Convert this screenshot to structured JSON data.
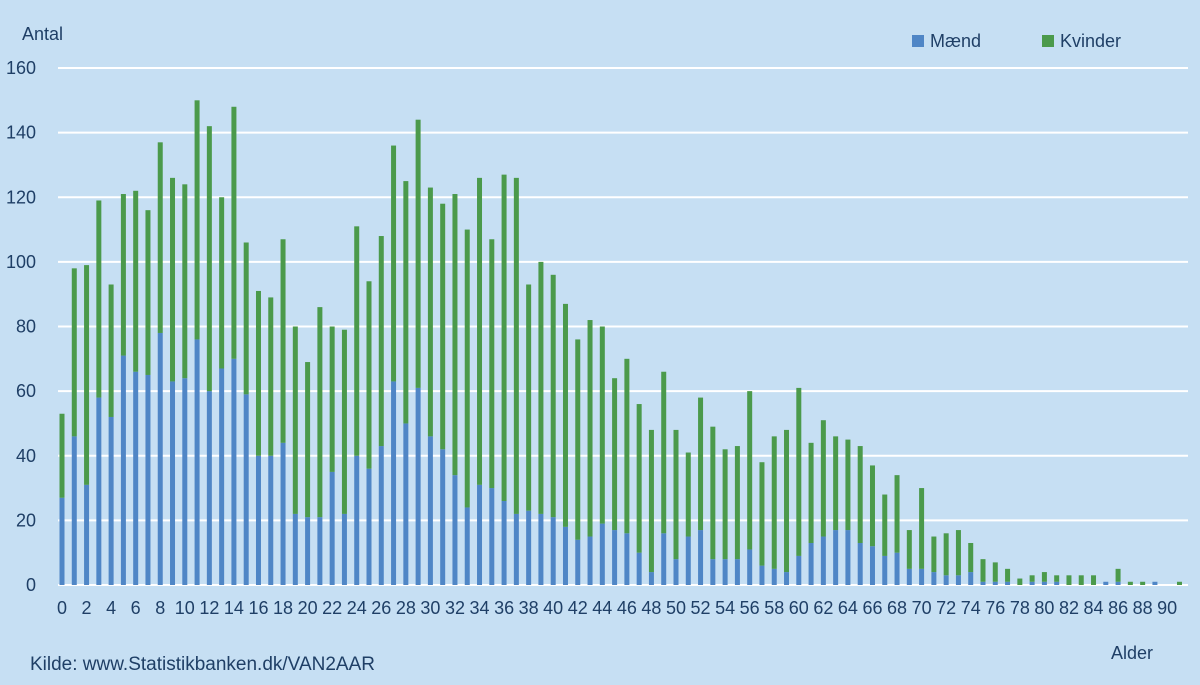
{
  "chart_data": {
    "type": "bar",
    "stacked": true,
    "ylabel": "Antal",
    "xlabel": "Alder",
    "ylim": [
      0,
      160
    ],
    "yticks": [
      0,
      20,
      40,
      60,
      80,
      100,
      120,
      140,
      160
    ],
    "grid": true,
    "legend_position": "top-right",
    "source": "Kilde: www.Statistikbanken.dk/VAN2AAR",
    "categories": [
      "0",
      "1",
      "2",
      "3",
      "4",
      "5",
      "6",
      "7",
      "8",
      "9",
      "10",
      "11",
      "12",
      "13",
      "14",
      "15",
      "16",
      "17",
      "18",
      "19",
      "20",
      "21",
      "22",
      "23",
      "24",
      "25",
      "26",
      "27",
      "28",
      "29",
      "30",
      "31",
      "32",
      "33",
      "34",
      "35",
      "36",
      "37",
      "38",
      "39",
      "40",
      "41",
      "42",
      "43",
      "44",
      "45",
      "46",
      "47",
      "48",
      "49",
      "50",
      "51",
      "52",
      "53",
      "54",
      "55",
      "56",
      "57",
      "58",
      "59",
      "60",
      "61",
      "62",
      "63",
      "64",
      "65",
      "66",
      "67",
      "68",
      "69",
      "70",
      "71",
      "72",
      "73",
      "74",
      "75",
      "76",
      "77",
      "78",
      "79",
      "80",
      "81",
      "82",
      "83",
      "84",
      "85",
      "86",
      "87",
      "88",
      "89",
      "90",
      "91"
    ],
    "xtick_labels": [
      "0",
      "2",
      "4",
      "6",
      "8",
      "10",
      "12",
      "14",
      "16",
      "18",
      "20",
      "22",
      "24",
      "26",
      "28",
      "30",
      "32",
      "34",
      "36",
      "38",
      "40",
      "42",
      "44",
      "46",
      "48",
      "50",
      "52",
      "54",
      "56",
      "58",
      "60",
      "62",
      "64",
      "66",
      "68",
      "70",
      "72",
      "74",
      "76",
      "78",
      "80",
      "82",
      "84",
      "86",
      "88",
      "90"
    ],
    "series": [
      {
        "name": "Mænd",
        "color": "#4f86c6",
        "values": [
          27,
          46,
          31,
          58,
          52,
          71,
          66,
          65,
          78,
          63,
          64,
          76,
          60,
          67,
          70,
          59,
          40,
          40,
          44,
          22,
          21,
          21,
          35,
          22,
          40,
          36,
          43,
          63,
          50,
          61,
          46,
          42,
          34,
          24,
          31,
          30,
          26,
          22,
          23,
          22,
          21,
          18,
          14,
          15,
          19,
          17,
          16,
          10,
          4,
          16,
          8,
          15,
          17,
          8,
          8,
          8,
          11,
          6,
          5,
          4,
          9,
          13,
          15,
          17,
          17,
          13,
          12,
          9,
          10,
          5,
          5,
          4,
          3,
          3,
          4,
          1,
          1,
          1,
          0,
          1,
          1,
          1,
          0,
          0,
          0,
          1,
          1,
          0,
          0,
          1,
          0,
          0
        ]
      },
      {
        "name": "Kvinder",
        "color": "#4b9a4b",
        "values": [
          26,
          52,
          68,
          61,
          41,
          50,
          56,
          51,
          59,
          63,
          60,
          74,
          82,
          53,
          78,
          47,
          51,
          49,
          63,
          58,
          48,
          65,
          45,
          57,
          71,
          58,
          65,
          73,
          75,
          83,
          77,
          76,
          87,
          86,
          95,
          77,
          101,
          104,
          70,
          78,
          75,
          69,
          62,
          67,
          61,
          47,
          54,
          46,
          44,
          50,
          40,
          26,
          41,
          41,
          34,
          35,
          49,
          32,
          41,
          44,
          52,
          31,
          36,
          29,
          28,
          30,
          25,
          19,
          24,
          12,
          25,
          11,
          13,
          14,
          9,
          7,
          6,
          4,
          2,
          2,
          3,
          2,
          3,
          3,
          3,
          0,
          4,
          1,
          1,
          0,
          0,
          1
        ]
      }
    ]
  }
}
